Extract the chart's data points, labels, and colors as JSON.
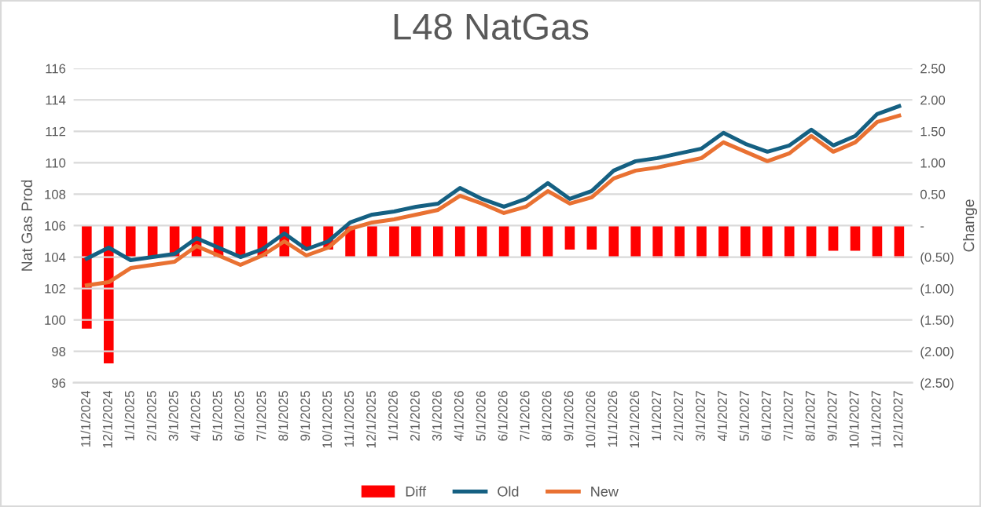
{
  "chart_data": {
    "type": "line",
    "title": "L48 NatGas",
    "ylabel": "Nat Gas Prod",
    "y2label": "Change",
    "categories": [
      "11/1/2024",
      "12/1/2024",
      "1/1/2025",
      "2/1/2025",
      "3/1/2025",
      "4/1/2025",
      "5/1/2025",
      "6/1/2025",
      "7/1/2025",
      "8/1/2025",
      "9/1/2025",
      "10/1/2025",
      "11/1/2025",
      "12/1/2025",
      "1/1/2026",
      "2/1/2026",
      "3/1/2026",
      "4/1/2026",
      "5/1/2026",
      "6/1/2026",
      "7/1/2026",
      "8/1/2026",
      "9/1/2026",
      "10/1/2026",
      "11/1/2026",
      "12/1/2026",
      "1/1/2027",
      "2/1/2027",
      "3/1/2027",
      "4/1/2027",
      "5/1/2027",
      "6/1/2027",
      "7/1/2027",
      "8/1/2027",
      "9/1/2027",
      "10/1/2027",
      "11/1/2027",
      "12/1/2027"
    ],
    "series": [
      {
        "name": "Diff",
        "type": "bar",
        "axis": "y2",
        "color": "#ff0000",
        "values": [
          -1.64,
          -2.19,
          -0.5,
          -0.5,
          -0.5,
          -0.5,
          -0.5,
          -0.5,
          -0.5,
          -0.5,
          -0.38,
          -0.38,
          -0.5,
          -0.5,
          -0.5,
          -0.5,
          -0.5,
          -0.5,
          -0.5,
          -0.5,
          -0.5,
          -0.5,
          -0.38,
          -0.38,
          -0.5,
          -0.5,
          -0.52,
          -0.52,
          -0.52,
          -0.52,
          -0.52,
          -0.52,
          -0.52,
          -0.52,
          -0.4,
          -0.4,
          -0.52,
          -0.52
        ]
      },
      {
        "name": "Old",
        "color": "#156082",
        "values": [
          103.9,
          104.6,
          103.8,
          104.0,
          104.2,
          105.2,
          104.6,
          104.0,
          104.5,
          105.5,
          104.5,
          105.0,
          106.2,
          106.7,
          106.9,
          107.2,
          107.4,
          108.4,
          107.7,
          107.2,
          107.7,
          108.7,
          107.7,
          108.2,
          109.5,
          110.1,
          110.3,
          110.6,
          110.9,
          111.9,
          111.2,
          110.7,
          111.1,
          112.1,
          111.1,
          111.7,
          113.1,
          113.6
        ]
      },
      {
        "name": "New",
        "color": "#e97132",
        "values": [
          102.2,
          102.4,
          103.3,
          103.5,
          103.7,
          104.7,
          104.1,
          103.5,
          104.1,
          105.0,
          104.1,
          104.6,
          105.8,
          106.2,
          106.4,
          106.7,
          107.0,
          107.9,
          107.4,
          106.8,
          107.2,
          108.2,
          107.4,
          107.8,
          109.0,
          109.5,
          109.7,
          110.0,
          110.3,
          111.3,
          110.7,
          110.1,
          110.6,
          111.7,
          110.7,
          111.3,
          112.6,
          113.0
        ]
      }
    ],
    "ylim": [
      96,
      116
    ],
    "yticks": [
      96,
      98,
      100,
      102,
      104,
      106,
      108,
      110,
      112,
      114,
      116
    ],
    "y2lim": [
      -2.5,
      2.5
    ],
    "y2ticks": [
      {
        "value": -2.5,
        "label": "(2.50)"
      },
      {
        "value": -2.0,
        "label": "(2.00)"
      },
      {
        "value": -1.5,
        "label": "(1.50)"
      },
      {
        "value": -1.0,
        "label": "(1.00)"
      },
      {
        "value": -0.5,
        "label": "(0.50)"
      },
      {
        "value": 0,
        "label": "-"
      },
      {
        "value": 0.5,
        "label": "0.50"
      },
      {
        "value": 1.0,
        "label": "1.00"
      },
      {
        "value": 1.5,
        "label": "1.50"
      },
      {
        "value": 2.0,
        "label": "2.00"
      },
      {
        "value": 2.5,
        "label": "2.50"
      }
    ],
    "grid": "y",
    "legend": "bottom",
    "marker": "none",
    "line_style": "solid"
  }
}
